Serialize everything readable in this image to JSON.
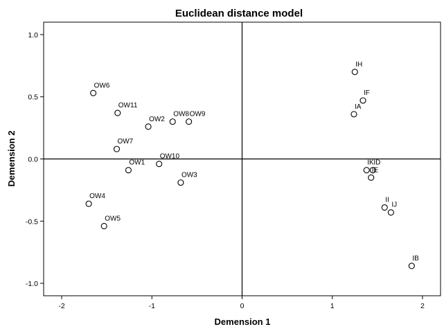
{
  "chart_data": {
    "type": "scatter",
    "title": "Euclidean distance model",
    "xlabel": "Demension 1",
    "ylabel": "Demension 2",
    "xlim": [
      -2.2,
      2.2
    ],
    "ylim": [
      -1.1,
      1.1
    ],
    "xticks": [
      -2,
      -1,
      0,
      1,
      2
    ],
    "yticks": [
      -1.0,
      -0.5,
      0.0,
      0.5,
      1.0
    ],
    "xtick_labels": [
      "-2",
      "-1",
      "0",
      "1",
      "2"
    ],
    "ytick_labels": [
      "-1.0",
      "-0.5",
      "0.0",
      "0.5",
      "1.0"
    ],
    "reference_lines": {
      "x": 0,
      "y": 0
    },
    "grid": false,
    "points": [
      {
        "label": "OW6",
        "x": -1.65,
        "y": 0.53
      },
      {
        "label": "OW11",
        "x": -1.38,
        "y": 0.37
      },
      {
        "label": "OW2",
        "x": -1.04,
        "y": 0.26
      },
      {
        "label": "OW8",
        "x": -0.77,
        "y": 0.3
      },
      {
        "label": "OW9",
        "x": -0.59,
        "y": 0.3
      },
      {
        "label": "OW7",
        "x": -1.39,
        "y": 0.08
      },
      {
        "label": "OW1",
        "x": -1.26,
        "y": -0.09
      },
      {
        "label": "OW10",
        "x": -0.92,
        "y": -0.04
      },
      {
        "label": "OW3",
        "x": -0.68,
        "y": -0.19
      },
      {
        "label": "OW4",
        "x": -1.7,
        "y": -0.36
      },
      {
        "label": "OW5",
        "x": -1.53,
        "y": -0.54
      },
      {
        "label": "IH",
        "x": 1.25,
        "y": 0.7
      },
      {
        "label": "IF",
        "x": 1.34,
        "y": 0.47
      },
      {
        "label": "IA",
        "x": 1.24,
        "y": 0.36
      },
      {
        "label": "IK",
        "x": 1.38,
        "y": -0.09
      },
      {
        "label": "ID",
        "x": 1.45,
        "y": -0.09
      },
      {
        "label": "IE",
        "x": 1.43,
        "y": -0.15
      },
      {
        "label": "II",
        "x": 1.58,
        "y": -0.39
      },
      {
        "label": "IJ",
        "x": 1.65,
        "y": -0.43
      },
      {
        "label": "IB",
        "x": 1.88,
        "y": -0.86
      }
    ]
  }
}
